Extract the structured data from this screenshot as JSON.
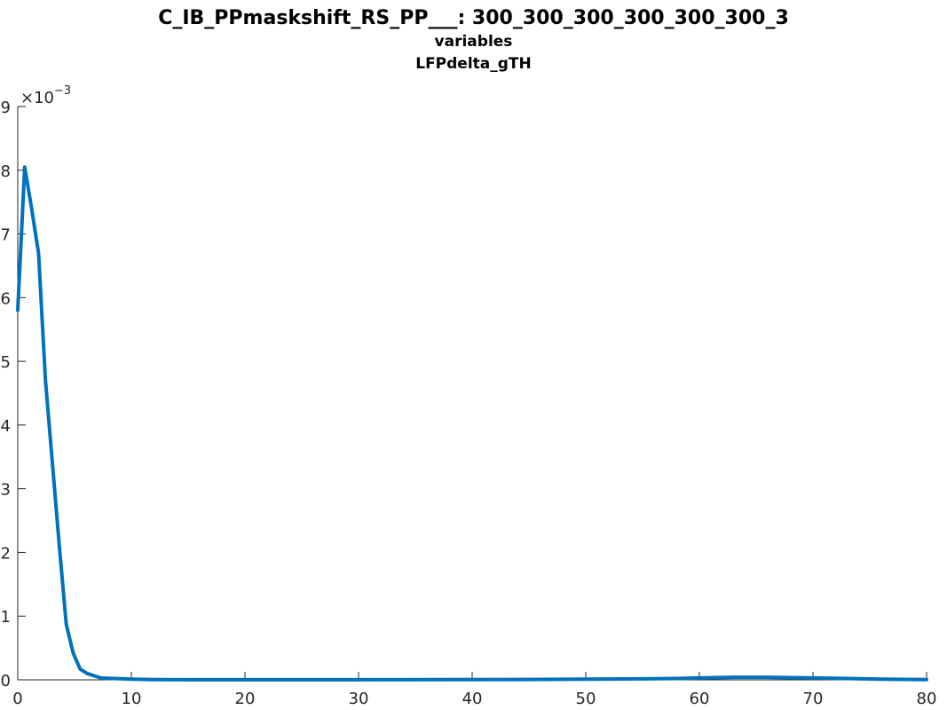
{
  "chart_data": {
    "type": "line",
    "title_lines": [
      "C_IB_PPmaskshift_RS_PP___: 300_300_300_300_300_300_3",
      "variables",
      "LFPdelta_gTH"
    ],
    "xlabel": "",
    "ylabel": "",
    "xlim": [
      0,
      80
    ],
    "ylim": [
      0,
      0.009
    ],
    "y_exponent_label": {
      "base": "×10",
      "exponent": "−3"
    },
    "x_ticks": [
      0,
      10,
      20,
      30,
      40,
      50,
      60,
      70,
      80
    ],
    "x_tick_labels": [
      "0",
      "10",
      "20",
      "30",
      "40",
      "50",
      "60",
      "70",
      "80"
    ],
    "y_ticks": [
      0,
      0.001,
      0.002,
      0.003,
      0.004,
      0.005,
      0.006,
      0.007,
      0.008,
      0.009
    ],
    "y_tick_labels": [
      "0",
      "1",
      "2",
      "3",
      "4",
      "5",
      "6",
      "7",
      "8",
      "9"
    ],
    "grid": false,
    "series": [
      {
        "color": "#0072BD",
        "x": [
          0,
          0.61,
          1.22,
          1.83,
          2.44,
          3.05,
          3.66,
          4.27,
          4.88,
          5.49,
          6.1,
          7.3,
          8.5,
          10,
          12,
          15,
          20,
          30,
          40,
          45,
          50,
          55,
          58,
          60,
          63,
          66,
          70,
          73,
          76,
          80
        ],
        "y": [
          0.0058,
          0.00805,
          0.0074,
          0.0067,
          0.0047,
          0.0034,
          0.0021,
          0.00087,
          0.00042,
          0.00017,
          0.0001,
          3e-05,
          2e-05,
          1e-05,
          3e-06,
          2e-06,
          1e-06,
          1e-06,
          3e-06,
          6e-06,
          1e-05,
          1.5e-05,
          2e-05,
          3e-05,
          4e-05,
          4e-05,
          3e-05,
          2e-05,
          1e-05,
          3e-06
        ]
      }
    ]
  }
}
